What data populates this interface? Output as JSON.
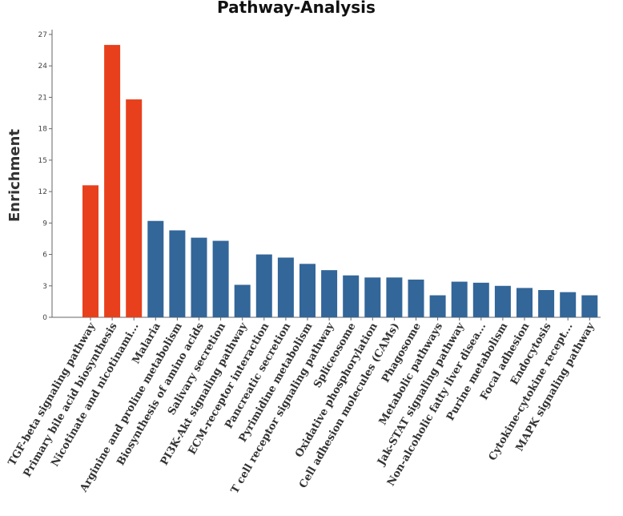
{
  "chart_data": {
    "type": "bar",
    "title": "Pathway-Analysis",
    "ylabel": "Enrichment",
    "xlabel": "",
    "ylim": [
      0,
      27
    ],
    "yticks": [
      0,
      3,
      6,
      9,
      12,
      15,
      18,
      21,
      24,
      27
    ],
    "grid": false,
    "legend": "none",
    "colors": {
      "highlight": "#e8401c",
      "default": "#336699"
    },
    "categories": [
      "TGF-beta signaling pathway",
      "Primary bile acid biosynthesis",
      "Nicotinate and nicotinami...",
      "Malaria",
      "Arginine and proline metabolism",
      "Biosynthesis of amino acids",
      "Salivary secretion",
      "PI3K-Akt signaling pathway",
      "ECM-receptor interaction",
      "Pancreatic secretion",
      "Pyrimidine metabolism",
      "T cell receptor signaling pathway",
      "Spliceosome",
      "Oxidative phosphorylation",
      "Cell adhesion molecules (CAMs)",
      "Phagosome",
      "Metabolic pathways",
      "Jak-STAT signaling pathway",
      "Non-alcoholic fatty liver disea...",
      "Purine metabolism",
      "Focal adhesion",
      "Endocytosis",
      "Cytokine-cytokine recept...",
      "MAPK signaling pathway"
    ],
    "values": [
      12.6,
      26.0,
      20.8,
      9.2,
      8.3,
      7.6,
      7.3,
      3.1,
      6.0,
      5.7,
      5.1,
      4.5,
      4.0,
      3.8,
      3.8,
      3.6,
      2.1,
      3.4,
      3.3,
      3.0,
      2.8,
      2.6,
      2.4,
      2.1
    ],
    "highlighted": [
      true,
      true,
      true,
      false,
      false,
      false,
      false,
      false,
      false,
      false,
      false,
      false,
      false,
      false,
      false,
      false,
      false,
      false,
      false,
      false,
      false,
      false,
      false,
      false
    ]
  }
}
